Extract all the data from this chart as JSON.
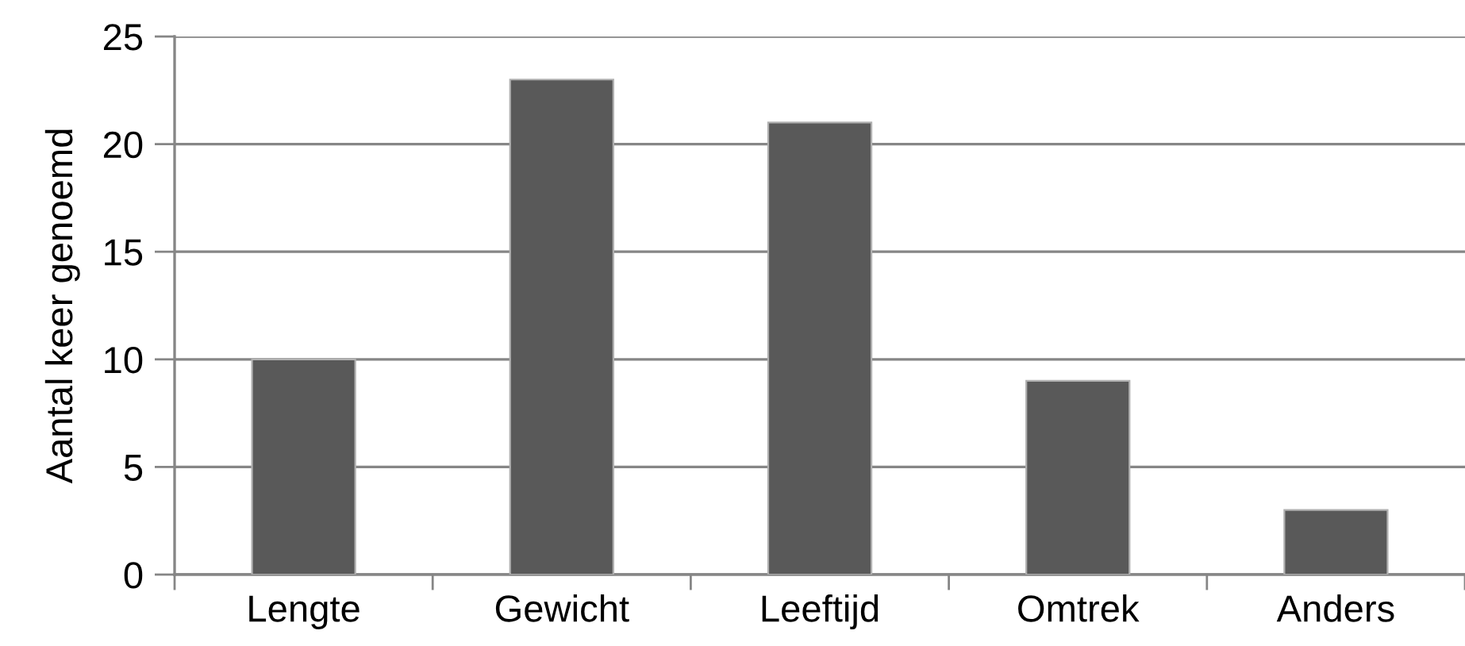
{
  "chart_data": {
    "type": "bar",
    "ylabel": "Aantal keer genoemd",
    "categories": [
      "Lengte",
      "Gewicht",
      "Leeftijd",
      "Omtrek",
      "Anders"
    ],
    "values": [
      10,
      23,
      21,
      9,
      3
    ],
    "color": "#595959",
    "ylim": [
      0,
      25
    ],
    "yticks": [
      0,
      5,
      10,
      15,
      20,
      25
    ],
    "grid": "y"
  }
}
